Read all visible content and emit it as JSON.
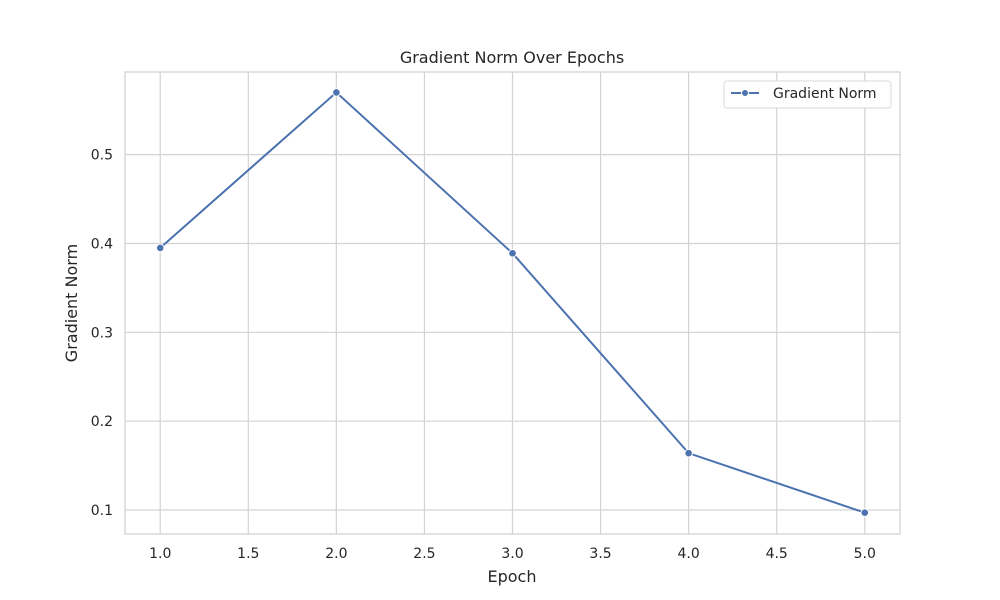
{
  "chart_data": {
    "type": "line",
    "title": "Gradient Norm Over Epochs",
    "xlabel": "Epoch",
    "ylabel": "Gradient Norm",
    "xlim": [
      0.8,
      5.2
    ],
    "ylim": [
      0.073,
      0.593
    ],
    "xticks": [
      1.0,
      1.5,
      2.0,
      2.5,
      3.0,
      3.5,
      4.0,
      4.5,
      5.0
    ],
    "xtick_labels": [
      "1.0",
      "1.5",
      "2.0",
      "2.5",
      "3.0",
      "3.5",
      "4.0",
      "4.5",
      "5.0"
    ],
    "yticks": [
      0.1,
      0.2,
      0.3,
      0.4,
      0.5
    ],
    "ytick_labels": [
      "0.1",
      "0.2",
      "0.3",
      "0.4",
      "0.5"
    ],
    "grid": true,
    "legend_position": "top-right",
    "colors": {
      "series": "#4c72b0"
    },
    "series": [
      {
        "name": "Gradient Norm",
        "x": [
          1,
          2,
          3,
          4,
          5
        ],
        "values": [
          0.395,
          0.57,
          0.389,
          0.164,
          0.097
        ]
      }
    ]
  }
}
